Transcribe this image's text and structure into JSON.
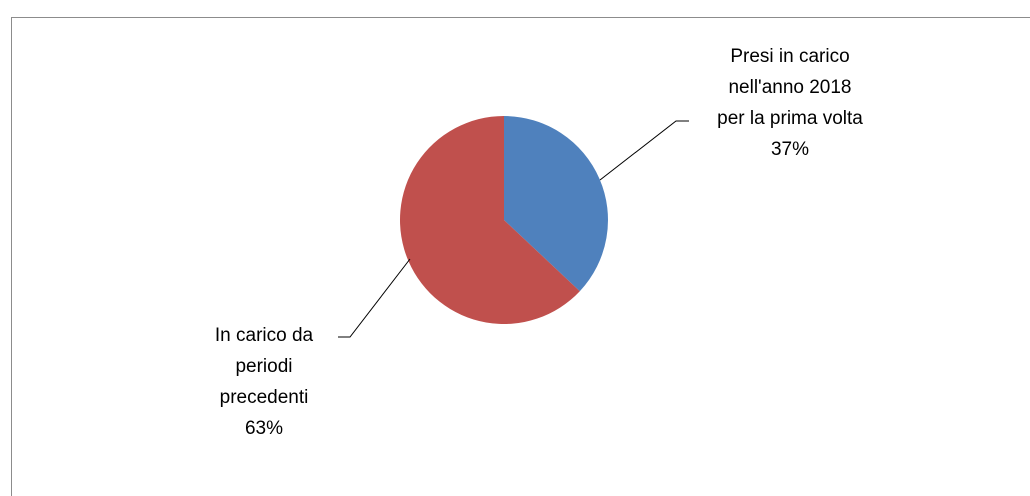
{
  "chart_data": {
    "type": "pie",
    "title": "",
    "slices": [
      {
        "label_lines": [
          "Presi in carico",
          "nell'anno 2018",
          "per la prima volta"
        ],
        "percent_label": "37%",
        "value": 37,
        "color": "#4f81bd"
      },
      {
        "label_lines": [
          "In carico da",
          "periodi",
          "precedenti"
        ],
        "percent_label": "63%",
        "value": 63,
        "color": "#c0504d"
      }
    ],
    "start_angle_deg": 0,
    "direction": "clockwise",
    "leader_lines": true,
    "legend": "none"
  }
}
